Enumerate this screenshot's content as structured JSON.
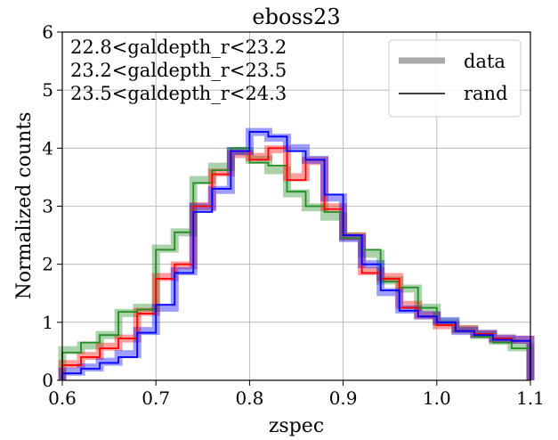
{
  "chart_data": {
    "type": "line",
    "title": "eboss23",
    "xlabel": "zspec",
    "ylabel": "Normalized counts",
    "xlim": [
      0.6,
      1.1
    ],
    "ylim": [
      0,
      6
    ],
    "xticks": [
      "0.6",
      "0.7",
      "0.8",
      "0.9",
      "1.0",
      "1.1"
    ],
    "yticks": [
      "0",
      "1",
      "2",
      "3",
      "4",
      "5",
      "6"
    ],
    "grid": true,
    "legend_position": "top-right",
    "legend": [
      {
        "label": "data",
        "style": "thick-gray"
      },
      {
        "label": "rand",
        "style": "thin-black"
      }
    ],
    "bin_edges": [
      0.6,
      0.62,
      0.64,
      0.66,
      0.68,
      0.7,
      0.72,
      0.74,
      0.76,
      0.78,
      0.8,
      0.82,
      0.84,
      0.86,
      0.88,
      0.9,
      0.92,
      0.94,
      0.96,
      0.98,
      1.0,
      1.02,
      1.04,
      1.06,
      1.08,
      1.1
    ],
    "series": [
      {
        "name": "22.8<galdepth_r<23.2",
        "color": "#228b22",
        "data": [
          0.52,
          0.6,
          0.78,
          1.16,
          1.25,
          2.27,
          2.55,
          3.45,
          3.68,
          3.95,
          3.8,
          3.62,
          3.22,
          2.98,
          2.82,
          2.48,
          2.18,
          1.72,
          1.58,
          1.25,
          1.0,
          0.88,
          0.78,
          0.68,
          0.57
        ],
        "rand": [
          0.48,
          0.65,
          0.78,
          1.18,
          1.22,
          2.25,
          2.55,
          3.4,
          3.62,
          4.0,
          3.75,
          3.7,
          3.25,
          3.0,
          2.9,
          2.45,
          2.25,
          1.7,
          1.6,
          1.25,
          1.0,
          0.85,
          0.75,
          0.65,
          0.55
        ]
      },
      {
        "name": "23.2<galdepth_r<23.5",
        "color": "#ff0000",
        "data": [
          0.28,
          0.42,
          0.58,
          0.72,
          1.18,
          1.78,
          1.98,
          3.0,
          3.58,
          3.9,
          3.85,
          3.98,
          3.5,
          3.78,
          2.98,
          2.48,
          1.88,
          1.78,
          1.3,
          1.12,
          0.95,
          0.88,
          0.8,
          0.72,
          0.7
        ],
        "rand": [
          0.26,
          0.4,
          0.55,
          0.72,
          1.15,
          1.75,
          2.0,
          3.0,
          3.55,
          3.95,
          3.8,
          4.0,
          3.45,
          3.8,
          2.95,
          2.5,
          1.85,
          1.75,
          1.25,
          1.1,
          0.95,
          0.85,
          0.8,
          0.72,
          0.68
        ]
      },
      {
        "name": "23.5<galdepth_r<24.3",
        "color": "#0000ff",
        "data": [
          0.15,
          0.22,
          0.32,
          0.45,
          0.85,
          1.25,
          1.88,
          2.98,
          3.28,
          3.95,
          4.28,
          4.18,
          4.0,
          3.8,
          3.15,
          2.45,
          2.0,
          1.52,
          1.22,
          1.12,
          1.02,
          0.85,
          0.8,
          0.72,
          0.7
        ],
        "rand": [
          0.12,
          0.2,
          0.3,
          0.4,
          0.82,
          1.3,
          1.85,
          2.9,
          3.3,
          3.95,
          4.28,
          4.2,
          3.95,
          3.8,
          3.2,
          2.5,
          2.0,
          1.55,
          1.2,
          1.1,
          1.0,
          0.85,
          0.78,
          0.7,
          0.68
        ]
      }
    ]
  }
}
